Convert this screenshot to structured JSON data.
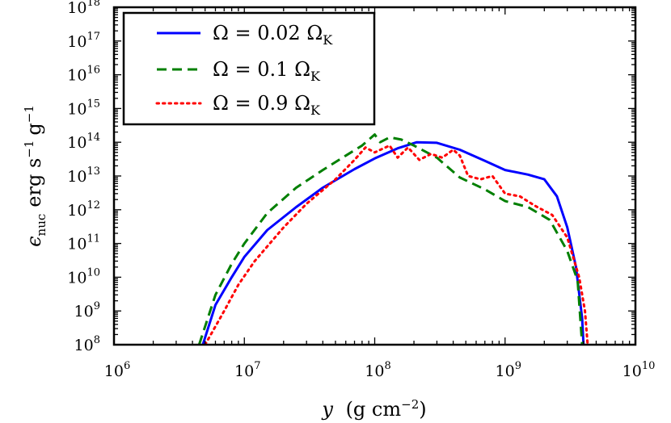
{
  "chart_data": {
    "type": "line",
    "xlabel": {
      "var": "y",
      "rest": "(g cm",
      "exp": "−2",
      "close": ")"
    },
    "ylabel": {
      "main": "ϵ",
      "sub": "nuc",
      "rest": "erg s",
      "exp1": "−1",
      "mid": "g",
      "exp2": "−1"
    },
    "x_scale": "log",
    "y_scale": "log",
    "xlim": [
      1000000,
      10000000000
    ],
    "ylim": [
      100000000,
      1000000000000000000
    ],
    "x_ticks": [
      {
        "base": "10",
        "exp": "6"
      },
      {
        "base": "10",
        "exp": "7"
      },
      {
        "base": "10",
        "exp": "8"
      },
      {
        "base": "10",
        "exp": "9"
      },
      {
        "base": "10",
        "exp": "10"
      }
    ],
    "y_ticks": [
      {
        "base": "10",
        "exp": "8"
      },
      {
        "base": "10",
        "exp": "9"
      },
      {
        "base": "10",
        "exp": "10"
      },
      {
        "base": "10",
        "exp": "11"
      },
      {
        "base": "10",
        "exp": "12"
      },
      {
        "base": "10",
        "exp": "13"
      },
      {
        "base": "10",
        "exp": "14"
      },
      {
        "base": "10",
        "exp": "15"
      },
      {
        "base": "10",
        "exp": "16"
      },
      {
        "base": "10",
        "exp": "17"
      },
      {
        "base": "10",
        "exp": "18"
      }
    ],
    "legend_position": "top-left",
    "series": [
      {
        "name": "Ω = 0.02 Ω",
        "name_sub": "K",
        "color": "#0000ff",
        "dash": "solid",
        "x": [
          4800000,
          6000000,
          8000000,
          10000000,
          15000000,
          25000000,
          40000000,
          70000000,
          100000000,
          150000000,
          210000000,
          300000000,
          450000000,
          700000000,
          1000000000,
          1500000000,
          2000000000,
          2500000000,
          3000000000,
          3500000000,
          3900000000,
          4000000000
        ],
        "y": [
          100000000,
          1500000000,
          10000000000,
          40000000000,
          250000000000,
          1200000000000,
          4500000000000,
          16000000000000,
          33000000000000,
          66000000000000,
          100000000000000,
          96000000000000,
          60000000000000,
          28000000000000,
          15000000000000,
          11000000000000,
          8000000000000,
          2500000000000,
          300000000000,
          20000000000,
          600000000,
          100000000
        ]
      },
      {
        "name": "Ω = 0.1 Ω",
        "name_sub": "K",
        "color": "#007f00",
        "dash": "dashed",
        "x": [
          4500000,
          6000000,
          8000000,
          10000000,
          15000000,
          25000000,
          40000000,
          60000000,
          80000000,
          100000000,
          110000000,
          130000000,
          160000000,
          200000000,
          300000000,
          450000000,
          700000000,
          1000000000,
          1500000000,
          2200000000,
          3000000000,
          3600000000,
          3900000000
        ],
        "y": [
          100000000,
          3000000000,
          25000000000,
          100000000000,
          800000000000,
          4500000000000,
          15000000000000,
          40000000000000,
          80000000000000,
          170000000000000,
          100000000000000,
          140000000000000,
          120000000000000,
          80000000000000,
          35000000000000,
          9000000000000,
          4000000000000,
          1800000000000,
          1200000000000,
          500000000000,
          60000000000,
          8000000000,
          100000000
        ]
      },
      {
        "name": "Ω = 0.9 Ω",
        "name_sub": "K",
        "color": "#ff0000",
        "dash": "dotted",
        "x": [
          5000000,
          7000000,
          9000000,
          12000000,
          20000000,
          30000000,
          50000000,
          70000000,
          85000000,
          100000000,
          130000000,
          150000000,
          180000000,
          220000000,
          270000000,
          330000000,
          400000000,
          450000000,
          520000000,
          650000000,
          800000000,
          1000000000,
          1300000000,
          1700000000,
          2300000000,
          3000000000,
          3700000000,
          4100000000,
          4300000000
        ],
        "y": [
          100000000,
          1000000000,
          6000000000,
          30000000000,
          300000000000,
          1500000000000,
          8000000000000,
          30000000000000,
          70000000000000,
          50000000000000,
          80000000000000,
          35000000000000,
          70000000000000,
          30000000000000,
          45000000000000,
          35000000000000,
          60000000000000,
          40000000000000,
          10000000000000,
          8000000000000,
          10000000000000,
          3000000000000,
          2500000000000,
          1300000000000,
          700000000000,
          150000000000,
          10000000000,
          1000000000,
          100000000
        ]
      }
    ]
  }
}
